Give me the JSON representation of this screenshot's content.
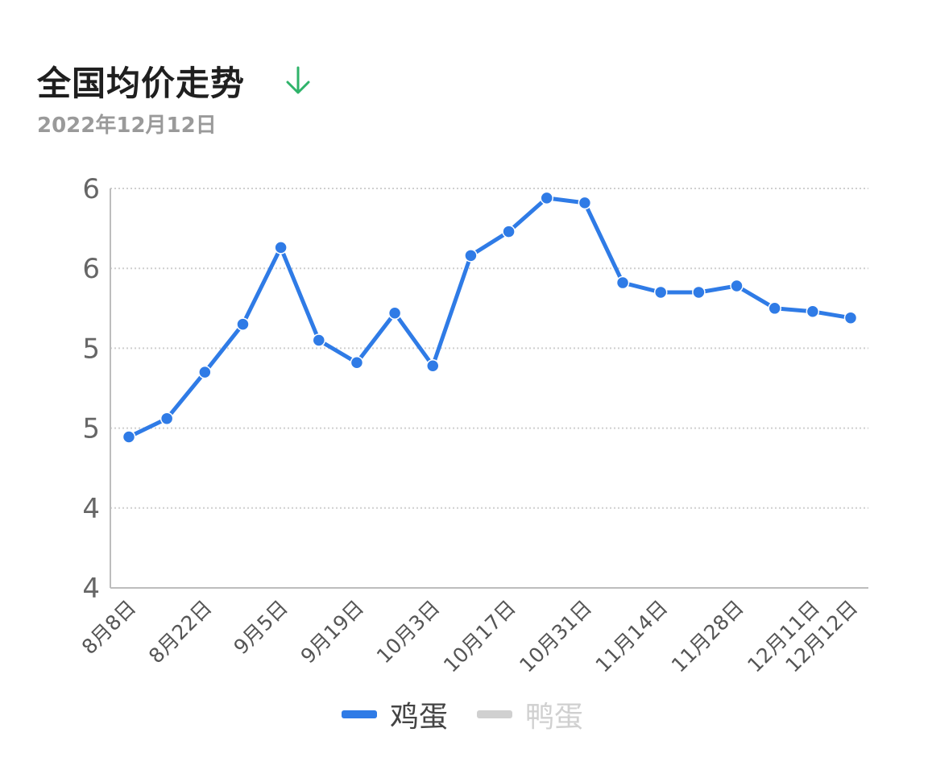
{
  "header": {
    "title": "全国均价走势",
    "date": "2022年12月12日",
    "trend_icon": "arrow-down-icon",
    "trend_color": "#2fb36a"
  },
  "colors": {
    "series_egg": "#2f7be6",
    "series_duck_inactive": "#d0d0d0",
    "grid": "#cfcfcf",
    "axis": "#bdbdbd"
  },
  "legend": [
    {
      "label": "鸡蛋",
      "active": true
    },
    {
      "label": "鸭蛋",
      "active": false
    }
  ],
  "chart_data": {
    "type": "line",
    "title": "全国均价走势",
    "subtitle": "2022年12月12日",
    "xlabel": "",
    "ylabel": "",
    "y_tick_labels": [
      "4",
      "4",
      "5",
      "5",
      "6",
      "6"
    ],
    "ylim": [
      3.75,
      6.25
    ],
    "grid": true,
    "legend_position": "bottom",
    "x_tick_labels": [
      "8月8日",
      "8月22日",
      "9月5日",
      "9月19日",
      "10月3日",
      "10月17日",
      "10月31日",
      "11月14日",
      "11月28日",
      "12月11日",
      "12月12日"
    ],
    "x_tick_index": [
      0,
      2,
      4,
      6,
      8,
      10,
      12,
      14,
      16,
      18,
      19
    ],
    "series": [
      {
        "name": "鸡蛋",
        "values": [
          4.695,
          4.81,
          5.1,
          5.4,
          5.88,
          5.3,
          5.16,
          5.47,
          5.14,
          5.83,
          5.98,
          6.19,
          6.16,
          5.66,
          5.6,
          5.6,
          5.64,
          5.5,
          5.48,
          5.44
        ]
      },
      {
        "name": "鸭蛋",
        "values": []
      }
    ]
  }
}
